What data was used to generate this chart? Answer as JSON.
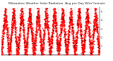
{
  "title": "Milwaukee Weather Solar Radiation",
  "subtitle": "Avg per Day W/m²/minute",
  "ylim": [
    0,
    5.5
  ],
  "num_years": 12,
  "background_color": "#ffffff",
  "dot_color_red": "#ff0000",
  "dot_color_black": "#000000",
  "grid_color": "#bbbbbb",
  "title_fontsize": 3.2,
  "tick_fontsize": 2.2,
  "dot_size_red": 1.2,
  "dot_size_black": 0.8
}
